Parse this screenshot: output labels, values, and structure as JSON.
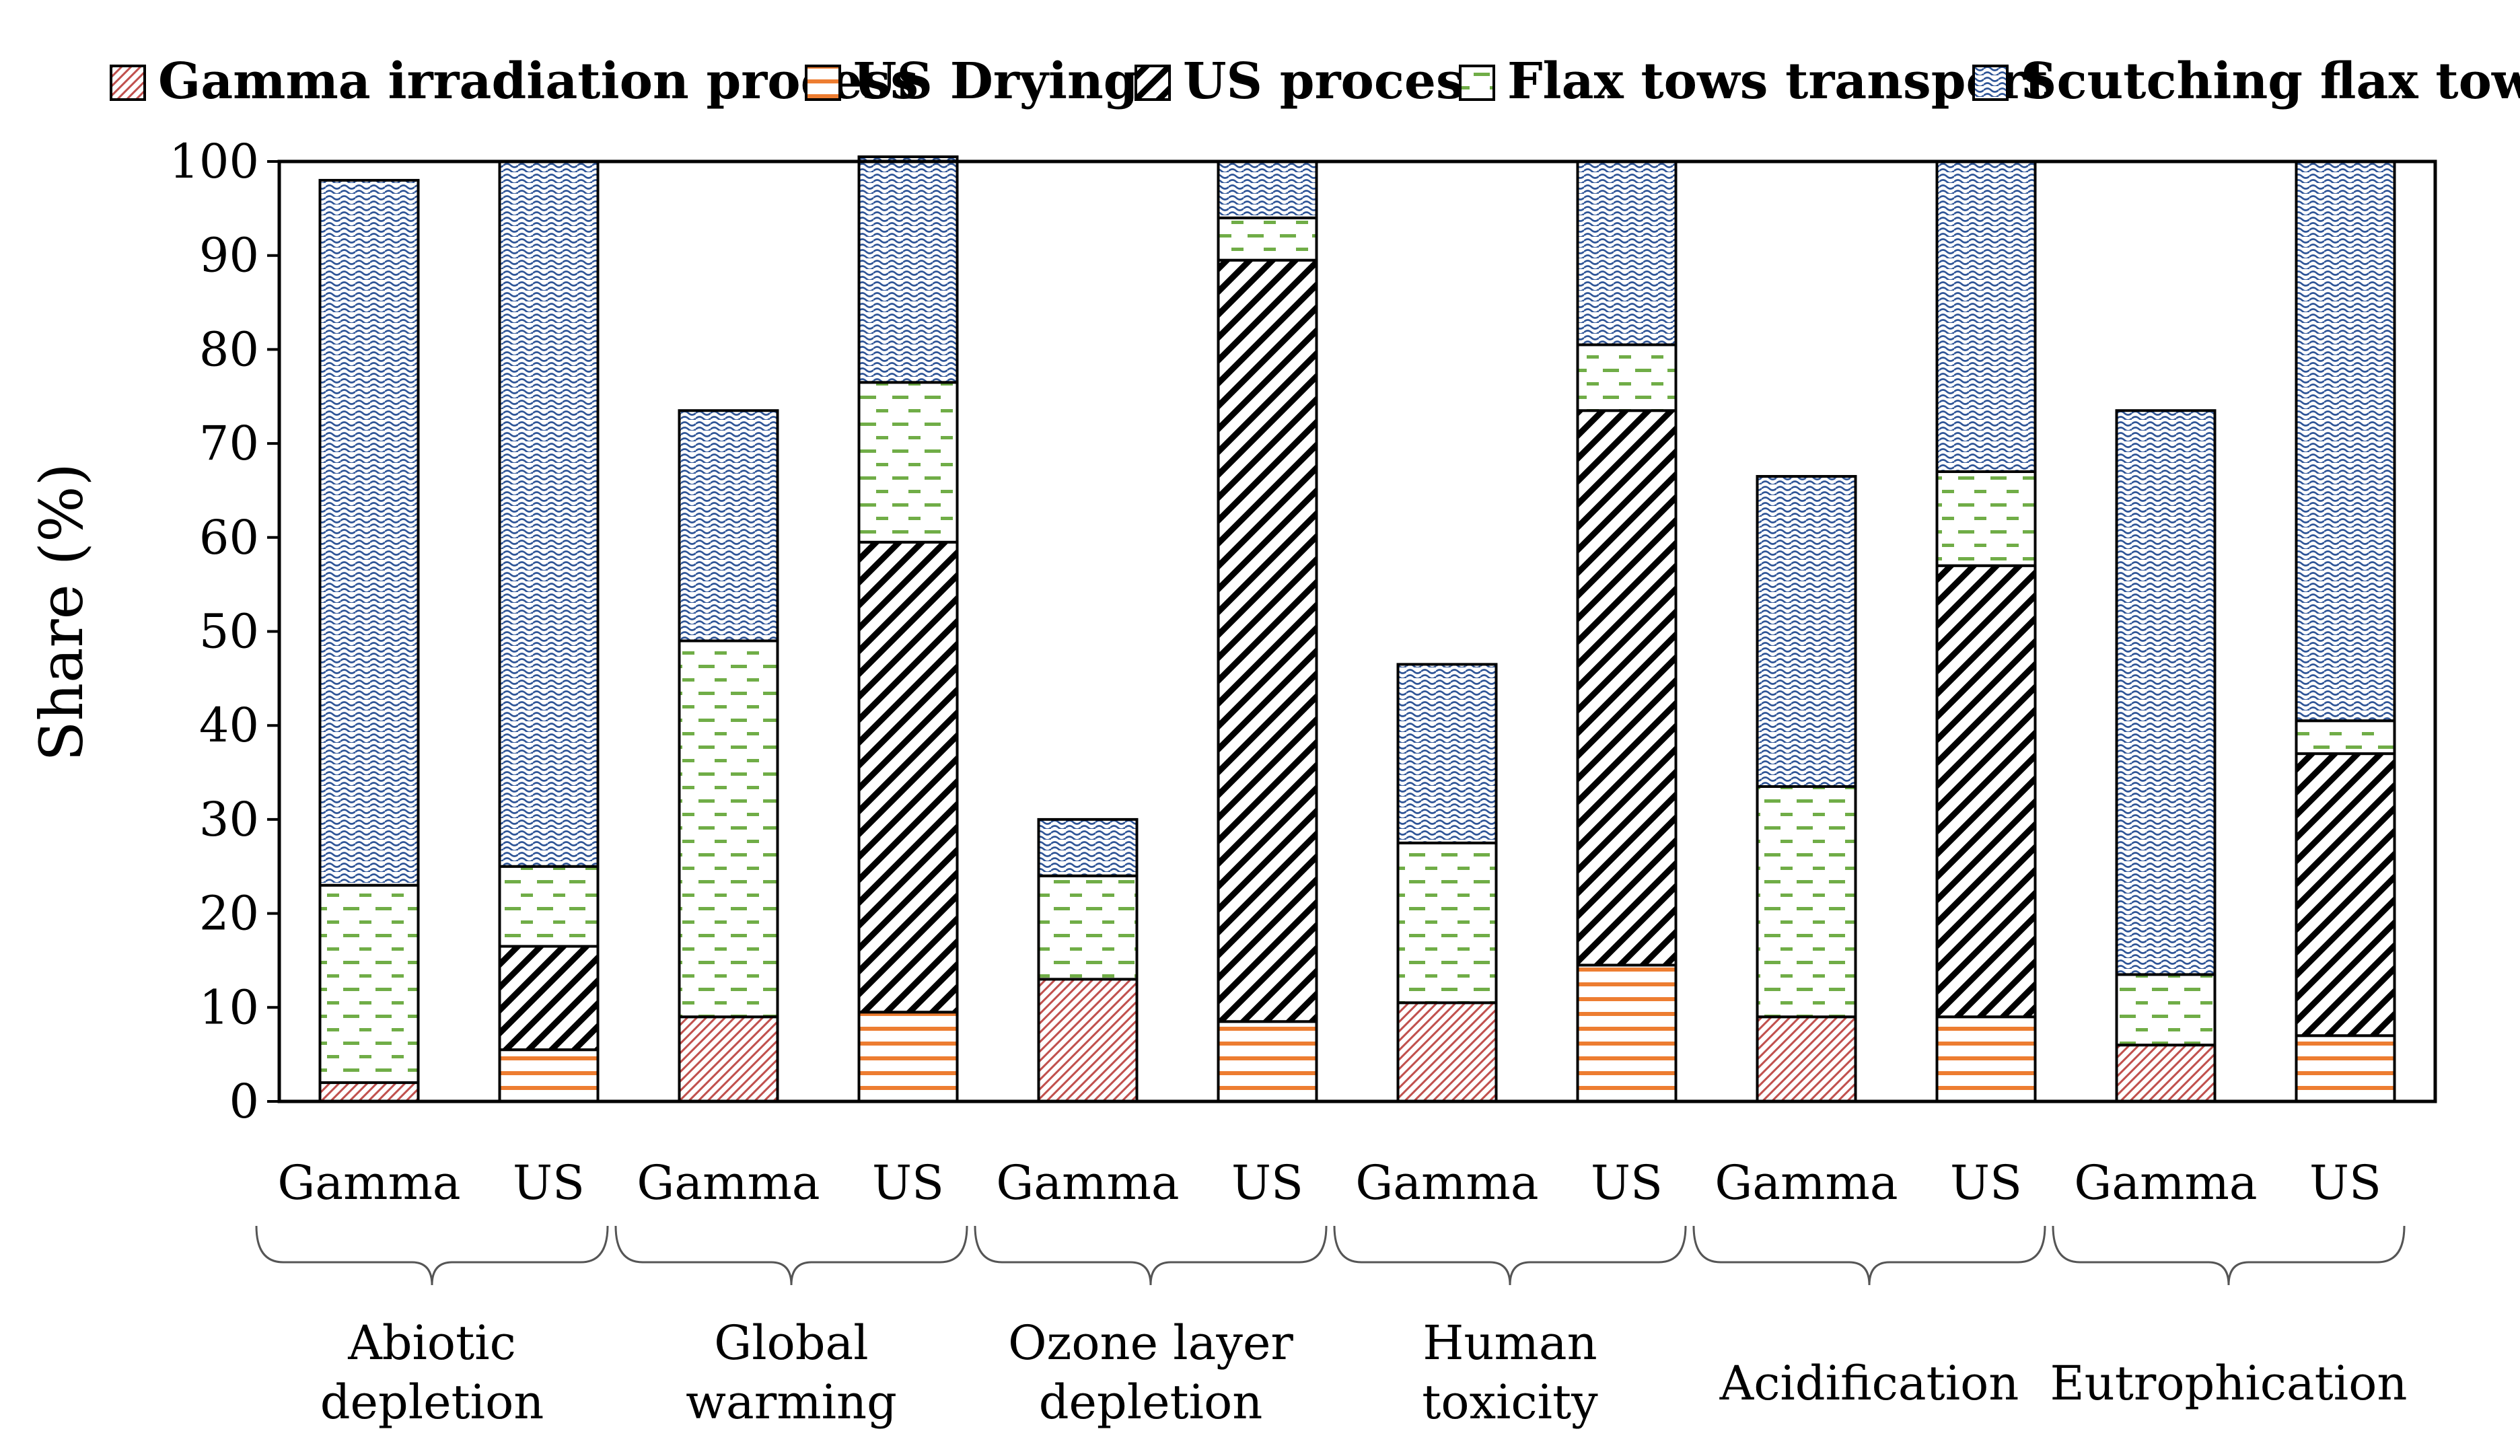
{
  "chart_data": {
    "type": "bar",
    "stacked": true,
    "title": "",
    "ylabel": "Share (%)",
    "xlabel": "",
    "ylim": [
      0,
      100
    ],
    "yticks": [
      0,
      10,
      20,
      30,
      40,
      50,
      60,
      70,
      80,
      90,
      100
    ],
    "legend_position": "top",
    "grid": false,
    "groups": [
      {
        "name": "Abiotic\ndepletion",
        "lines": [
          "Abiotic",
          "depletion"
        ]
      },
      {
        "name": "Global\nwarming",
        "lines": [
          "Global",
          "warming"
        ]
      },
      {
        "name": "Ozone layer\ndepletion",
        "lines": [
          "Ozone layer",
          "depletion"
        ]
      },
      {
        "name": "Human\ntoxicity",
        "lines": [
          "Human",
          "toxicity"
        ]
      },
      {
        "name": "Acidification",
        "lines": [
          "Acidification"
        ]
      },
      {
        "name": "Eutrophication",
        "lines": [
          "Eutrophication"
        ]
      }
    ],
    "categories": [
      "Gamma",
      "US"
    ],
    "series": [
      {
        "name": "Gamma irradiation process",
        "key": "gamma",
        "color": "#C0504D",
        "values": [
          [
            2,
            0
          ],
          [
            9,
            0
          ],
          [
            13,
            0
          ],
          [
            10.5,
            0
          ],
          [
            9,
            0
          ],
          [
            6,
            0
          ]
        ]
      },
      {
        "name": "US Drying",
        "key": "drying",
        "color": "#ED7D31",
        "values": [
          [
            0,
            5.5
          ],
          [
            0,
            9.5
          ],
          [
            0,
            8.5
          ],
          [
            0,
            14.5
          ],
          [
            0,
            9
          ],
          [
            0,
            7
          ]
        ]
      },
      {
        "name": "US process",
        "key": "usproc",
        "color": "#000000",
        "values": [
          [
            0,
            11
          ],
          [
            0,
            50
          ],
          [
            0,
            81
          ],
          [
            0,
            59
          ],
          [
            0,
            48
          ],
          [
            0,
            30
          ]
        ]
      },
      {
        "name": "Flax tows transport",
        "key": "flax",
        "color": "#70AD47",
        "values": [
          [
            21,
            8.5
          ],
          [
            40,
            17
          ],
          [
            11,
            4.5
          ],
          [
            17,
            7
          ],
          [
            24.5,
            10
          ],
          [
            7.5,
            3.5
          ]
        ]
      },
      {
        "name": "Scutching flax tows",
        "key": "scutch",
        "color": "#2F5597",
        "values": [
          [
            75,
            75
          ],
          [
            24.5,
            24
          ],
          [
            6,
            6
          ],
          [
            19,
            19.5
          ],
          [
            33,
            33
          ],
          [
            60,
            59.5
          ]
        ]
      }
    ]
  }
}
